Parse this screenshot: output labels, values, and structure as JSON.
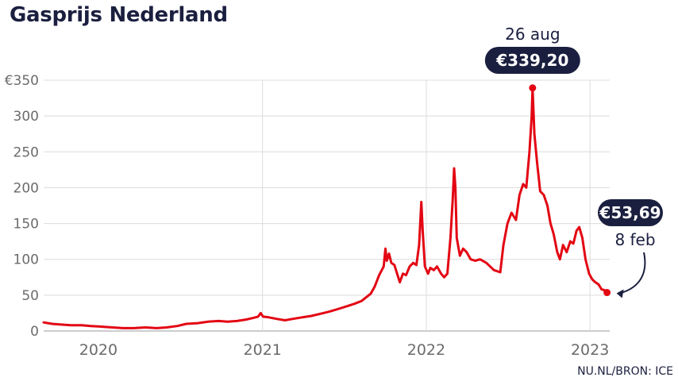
{
  "chart_data": {
    "type": "line",
    "title": "Gasprijs Nederland",
    "source": "NU.NL/BRON: ICE",
    "xlabel": "",
    "ylabel": "",
    "ylim": [
      0,
      350
    ],
    "y_ticks": [
      0,
      50,
      100,
      150,
      200,
      250,
      300,
      350
    ],
    "y_tick_labels": [
      "0",
      "50",
      "100",
      "150",
      "200",
      "250",
      "300",
      "€350"
    ],
    "x_range": [
      "2019-09-01",
      "2023-02-14"
    ],
    "x_ticks": [
      {
        "date": "2020-01-01",
        "label": "2020",
        "gridline": false
      },
      {
        "date": "2021-01-01",
        "label": "2021",
        "gridline": true
      },
      {
        "date": "2022-01-01",
        "label": "2022",
        "gridline": true
      },
      {
        "date": "2023-01-01",
        "label": "2023",
        "gridline": true
      }
    ],
    "grid": true,
    "line_color": "#e30613",
    "series": [
      {
        "name": "",
        "points": [
          [
            "2019-09-01",
            12
          ],
          [
            "2019-09-20",
            10
          ],
          [
            "2019-10-10",
            9
          ],
          [
            "2019-11-01",
            8
          ],
          [
            "2019-11-25",
            8
          ],
          [
            "2019-12-15",
            7
          ],
          [
            "2020-01-10",
            6
          ],
          [
            "2020-02-01",
            5
          ],
          [
            "2020-02-25",
            4
          ],
          [
            "2020-03-20",
            4
          ],
          [
            "2020-04-15",
            5
          ],
          [
            "2020-05-10",
            4
          ],
          [
            "2020-06-01",
            5
          ],
          [
            "2020-06-25",
            7
          ],
          [
            "2020-07-15",
            10
          ],
          [
            "2020-08-10",
            11
          ],
          [
            "2020-09-01",
            13
          ],
          [
            "2020-09-25",
            14
          ],
          [
            "2020-10-15",
            13
          ],
          [
            "2020-11-05",
            14
          ],
          [
            "2020-11-25",
            16
          ],
          [
            "2020-12-10",
            18
          ],
          [
            "2020-12-22",
            20
          ],
          [
            "2020-12-28",
            25
          ],
          [
            "2021-01-02",
            20
          ],
          [
            "2021-01-15",
            19
          ],
          [
            "2021-02-01",
            17
          ],
          [
            "2021-02-20",
            15
          ],
          [
            "2021-03-10",
            17
          ],
          [
            "2021-03-30",
            19
          ],
          [
            "2021-04-20",
            21
          ],
          [
            "2021-05-10",
            24
          ],
          [
            "2021-05-30",
            27
          ],
          [
            "2021-06-20",
            31
          ],
          [
            "2021-07-10",
            35
          ],
          [
            "2021-07-25",
            38
          ],
          [
            "2021-08-10",
            42
          ],
          [
            "2021-08-20",
            47
          ],
          [
            "2021-08-30",
            52
          ],
          [
            "2021-09-08",
            62
          ],
          [
            "2021-09-18",
            78
          ],
          [
            "2021-09-28",
            90
          ],
          [
            "2021-10-02",
            115
          ],
          [
            "2021-10-05",
            98
          ],
          [
            "2021-10-10",
            108
          ],
          [
            "2021-10-15",
            95
          ],
          [
            "2021-10-22",
            92
          ],
          [
            "2021-10-28",
            80
          ],
          [
            "2021-11-03",
            68
          ],
          [
            "2021-11-10",
            80
          ],
          [
            "2021-11-17",
            78
          ],
          [
            "2021-11-25",
            90
          ],
          [
            "2021-12-03",
            95
          ],
          [
            "2021-12-10",
            92
          ],
          [
            "2021-12-16",
            120
          ],
          [
            "2021-12-21",
            180
          ],
          [
            "2021-12-24",
            140
          ],
          [
            "2021-12-29",
            90
          ],
          [
            "2022-01-05",
            80
          ],
          [
            "2022-01-10",
            88
          ],
          [
            "2022-01-18",
            85
          ],
          [
            "2022-01-25",
            90
          ],
          [
            "2022-02-03",
            80
          ],
          [
            "2022-02-10",
            75
          ],
          [
            "2022-02-17",
            80
          ],
          [
            "2022-02-24",
            130
          ],
          [
            "2022-03-01",
            185
          ],
          [
            "2022-03-04",
            227
          ],
          [
            "2022-03-07",
            200
          ],
          [
            "2022-03-10",
            130
          ],
          [
            "2022-03-17",
            105
          ],
          [
            "2022-03-24",
            115
          ],
          [
            "2022-04-01",
            110
          ],
          [
            "2022-04-10",
            100
          ],
          [
            "2022-04-20",
            98
          ],
          [
            "2022-05-01",
            100
          ],
          [
            "2022-05-15",
            95
          ],
          [
            "2022-06-01",
            85
          ],
          [
            "2022-06-15",
            82
          ],
          [
            "2022-06-22",
            120
          ],
          [
            "2022-07-01",
            150
          ],
          [
            "2022-07-10",
            165
          ],
          [
            "2022-07-20",
            155
          ],
          [
            "2022-07-28",
            190
          ],
          [
            "2022-08-05",
            205
          ],
          [
            "2022-08-12",
            200
          ],
          [
            "2022-08-19",
            250
          ],
          [
            "2022-08-24",
            300
          ],
          [
            "2022-08-26",
            339.2
          ],
          [
            "2022-08-30",
            275
          ],
          [
            "2022-09-05",
            235
          ],
          [
            "2022-09-12",
            195
          ],
          [
            "2022-09-20",
            190
          ],
          [
            "2022-09-28",
            175
          ],
          [
            "2022-10-05",
            150
          ],
          [
            "2022-10-12",
            135
          ],
          [
            "2022-10-20",
            110
          ],
          [
            "2022-10-26",
            100
          ],
          [
            "2022-11-02",
            120
          ],
          [
            "2022-11-10",
            110
          ],
          [
            "2022-11-18",
            125
          ],
          [
            "2022-11-25",
            122
          ],
          [
            "2022-12-02",
            140
          ],
          [
            "2022-12-08",
            145
          ],
          [
            "2022-12-15",
            130
          ],
          [
            "2022-12-22",
            100
          ],
          [
            "2022-12-30",
            80
          ],
          [
            "2023-01-06",
            72
          ],
          [
            "2023-01-13",
            68
          ],
          [
            "2023-01-20",
            65
          ],
          [
            "2023-01-27",
            58
          ],
          [
            "2023-02-02",
            57
          ],
          [
            "2023-02-08",
            53.69
          ]
        ]
      }
    ],
    "annotations": [
      {
        "date": "2022-08-26",
        "value": 339.2,
        "date_label": "26 aug",
        "value_label": "€339,20"
      },
      {
        "date": "2023-02-08",
        "value": 53.69,
        "date_label": "8 feb",
        "value_label": "€53,69"
      }
    ]
  }
}
